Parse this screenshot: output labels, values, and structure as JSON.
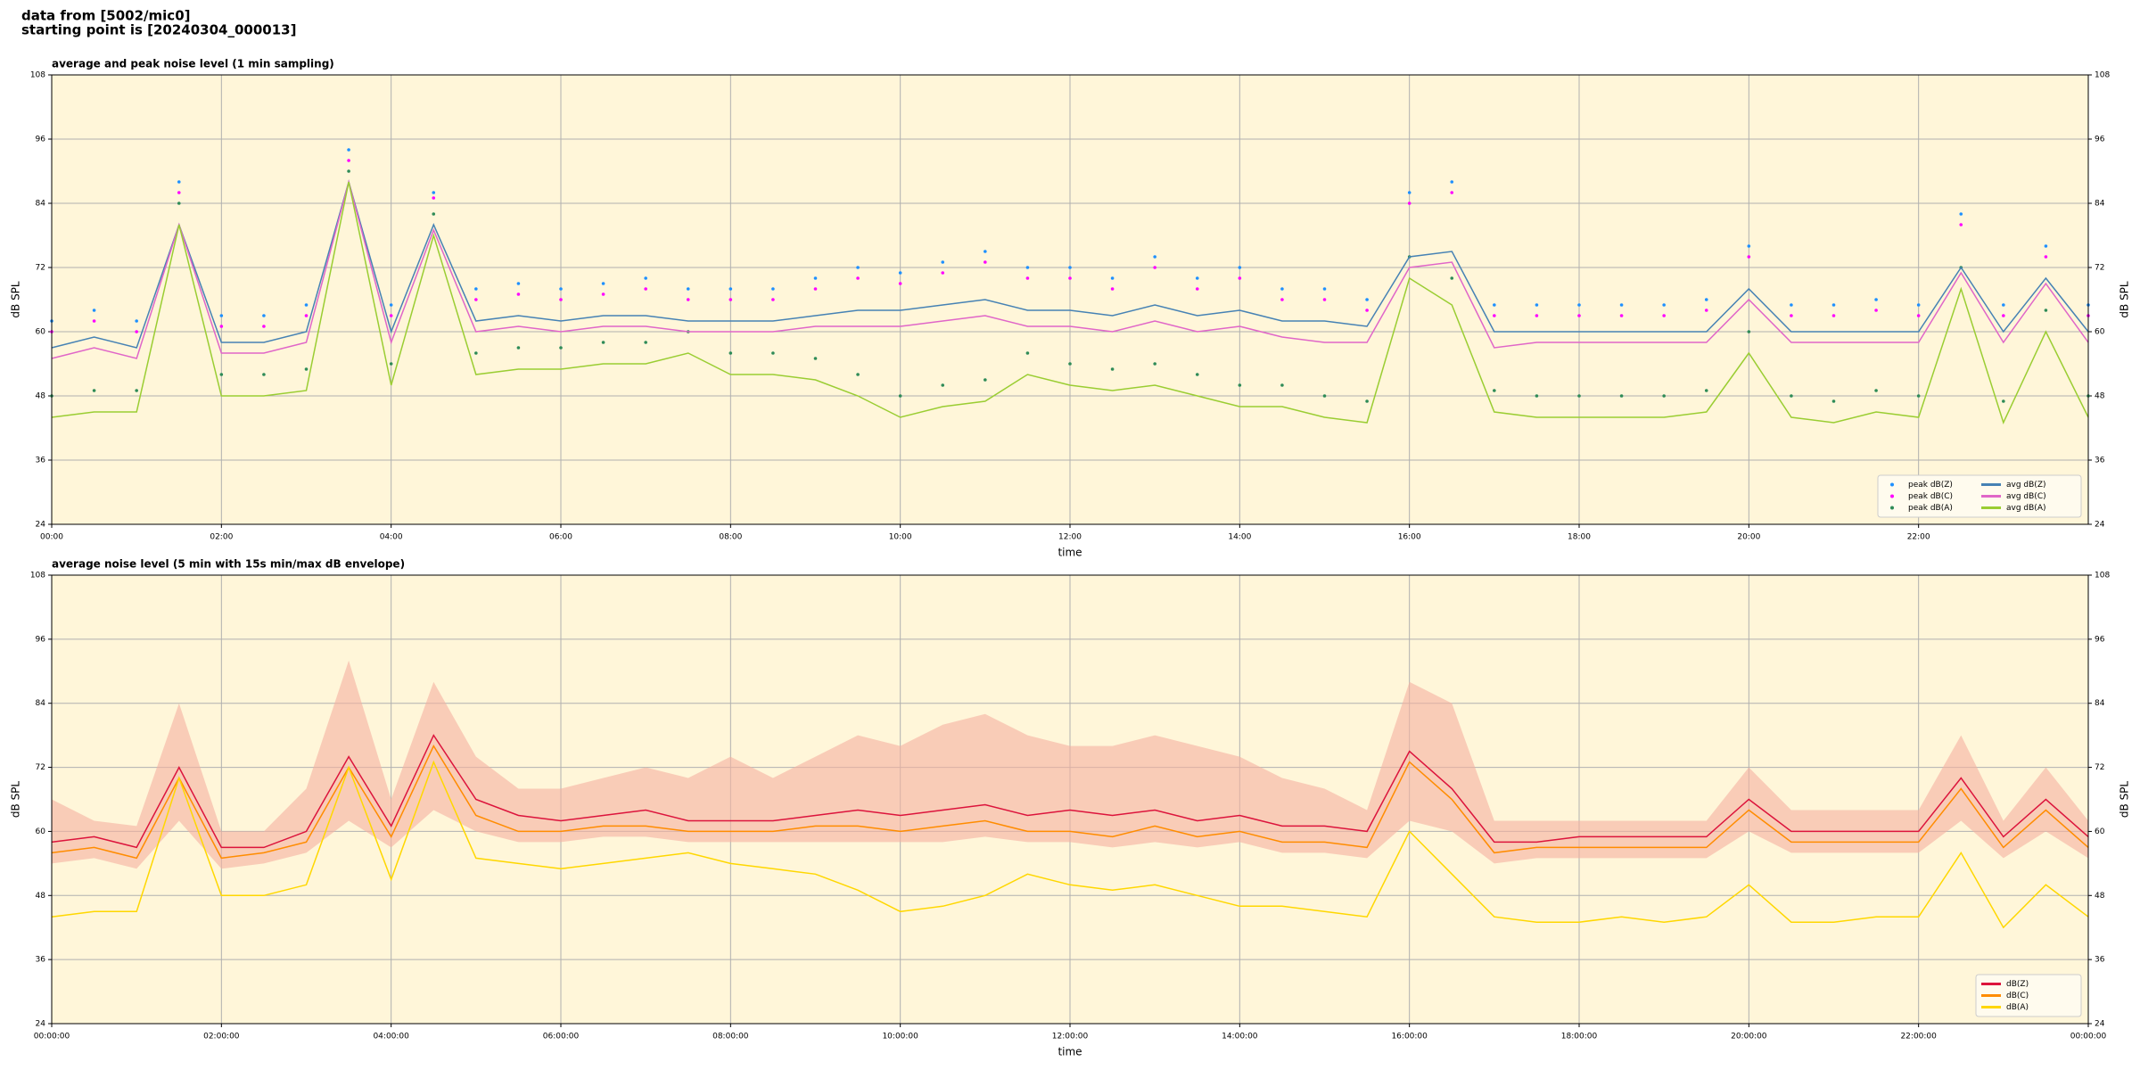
{
  "header": {
    "line1": "data from [5002/mic0]",
    "line2": "starting point is [20240304_000013]"
  },
  "chart_data": [
    {
      "type": "line",
      "title": "average and peak noise level (1 min sampling)",
      "xlabel": "time",
      "ylabel": "dB SPL",
      "xlim": [
        0,
        24
      ],
      "ylim": [
        24,
        108
      ],
      "yticks": [
        24,
        36,
        48,
        60,
        72,
        84,
        96,
        108
      ],
      "xticks": [
        {
          "value": 0,
          "label": "00:00"
        },
        {
          "value": 2,
          "label": "02:00"
        },
        {
          "value": 4,
          "label": "04:00"
        },
        {
          "value": 6,
          "label": "06:00"
        },
        {
          "value": 8,
          "label": "08:00"
        },
        {
          "value": 10,
          "label": "10:00"
        },
        {
          "value": 12,
          "label": "12:00"
        },
        {
          "value": 14,
          "label": "14:00"
        },
        {
          "value": 16,
          "label": "16:00"
        },
        {
          "value": 18,
          "label": "18:00"
        },
        {
          "value": 20,
          "label": "20:00"
        },
        {
          "value": 22,
          "label": "22:00"
        }
      ],
      "grid": true,
      "legend": "lower right",
      "x": [
        0,
        0.5,
        1,
        1.5,
        2,
        2.5,
        3,
        3.5,
        4,
        4.5,
        5,
        5.5,
        6,
        6.5,
        7,
        7.5,
        8,
        8.5,
        9,
        9.5,
        10,
        10.5,
        11,
        11.5,
        12,
        12.5,
        13,
        13.5,
        14,
        14.5,
        15,
        15.5,
        16,
        16.5,
        17,
        17.5,
        18,
        18.5,
        19,
        19.5,
        20,
        20.5,
        21,
        21.5,
        22,
        22.5,
        23,
        23.5,
        24
      ],
      "series": [
        {
          "name": "peak dB(Z)",
          "style": "scatter",
          "color": "#1e90ff",
          "values": [
            62,
            64,
            62,
            88,
            63,
            63,
            65,
            94,
            65,
            86,
            68,
            69,
            68,
            69,
            70,
            68,
            68,
            68,
            70,
            72,
            71,
            73,
            75,
            72,
            72,
            70,
            74,
            70,
            72,
            68,
            68,
            66,
            86,
            88,
            65,
            65,
            65,
            65,
            65,
            66,
            76,
            65,
            65,
            66,
            65,
            82,
            65,
            76,
            65
          ]
        },
        {
          "name": "peak dB(C)",
          "style": "scatter",
          "color": "#ff00ff",
          "values": [
            60,
            62,
            60,
            86,
            61,
            61,
            63,
            92,
            63,
            85,
            66,
            67,
            66,
            67,
            68,
            66,
            66,
            66,
            68,
            70,
            69,
            71,
            73,
            70,
            70,
            68,
            72,
            68,
            70,
            66,
            66,
            64,
            84,
            86,
            63,
            63,
            63,
            63,
            63,
            64,
            74,
            63,
            63,
            64,
            63,
            80,
            63,
            74,
            63
          ]
        },
        {
          "name": "peak dB(A)",
          "style": "scatter",
          "color": "#2e8b57",
          "values": [
            48,
            49,
            49,
            84,
            52,
            52,
            53,
            90,
            54,
            82,
            56,
            57,
            57,
            58,
            58,
            60,
            56,
            56,
            55,
            52,
            48,
            50,
            51,
            56,
            54,
            53,
            54,
            52,
            50,
            50,
            48,
            47,
            74,
            70,
            49,
            48,
            48,
            48,
            48,
            49,
            60,
            48,
            47,
            49,
            48,
            72,
            47,
            64,
            48
          ]
        },
        {
          "name": "avg dB(Z)",
          "style": "line",
          "color": "#4682b4",
          "values": [
            57,
            59,
            57,
            80,
            58,
            58,
            60,
            88,
            60,
            80,
            62,
            63,
            62,
            63,
            63,
            62,
            62,
            62,
            63,
            64,
            64,
            65,
            66,
            64,
            64,
            63,
            65,
            63,
            64,
            62,
            62,
            61,
            74,
            75,
            60,
            60,
            60,
            60,
            60,
            60,
            68,
            60,
            60,
            60,
            60,
            72,
            60,
            70,
            60
          ]
        },
        {
          "name": "avg dB(C)",
          "style": "line",
          "color": "#e066c8",
          "values": [
            55,
            57,
            55,
            80,
            56,
            56,
            58,
            88,
            58,
            79,
            60,
            61,
            60,
            61,
            61,
            60,
            60,
            60,
            61,
            61,
            61,
            62,
            63,
            61,
            61,
            60,
            62,
            60,
            61,
            59,
            58,
            58,
            72,
            73,
            57,
            58,
            58,
            58,
            58,
            58,
            66,
            58,
            58,
            58,
            58,
            71,
            58,
            69,
            58
          ]
        },
        {
          "name": "avg dB(A)",
          "style": "line",
          "color": "#9acd32",
          "values": [
            44,
            45,
            45,
            80,
            48,
            48,
            49,
            88,
            50,
            78,
            52,
            53,
            53,
            54,
            54,
            56,
            52,
            52,
            51,
            48,
            44,
            46,
            47,
            52,
            50,
            49,
            50,
            48,
            46,
            46,
            44,
            43,
            70,
            65,
            45,
            44,
            44,
            44,
            44,
            45,
            56,
            44,
            43,
            45,
            44,
            68,
            43,
            60,
            44
          ]
        }
      ]
    },
    {
      "type": "line",
      "title": "average noise level (5 min with 15s min/max dB envelope)",
      "xlabel": "time",
      "ylabel": "dB SPL",
      "xlim": [
        0,
        24
      ],
      "ylim": [
        24,
        108
      ],
      "yticks": [
        24,
        36,
        48,
        60,
        72,
        84,
        96,
        108
      ],
      "xticks": [
        {
          "value": 0,
          "label": "00:00:00"
        },
        {
          "value": 2,
          "label": "02:00:00"
        },
        {
          "value": 4,
          "label": "04:00:00"
        },
        {
          "value": 6,
          "label": "06:00:00"
        },
        {
          "value": 8,
          "label": "08:00:00"
        },
        {
          "value": 10,
          "label": "10:00:00"
        },
        {
          "value": 12,
          "label": "12:00:00"
        },
        {
          "value": 14,
          "label": "14:00:00"
        },
        {
          "value": 16,
          "label": "16:00:00"
        },
        {
          "value": 18,
          "label": "18:00:00"
        },
        {
          "value": 20,
          "label": "20:00:00"
        },
        {
          "value": 22,
          "label": "22:00:00"
        },
        {
          "value": 24,
          "label": "00:00:00"
        }
      ],
      "grid": true,
      "legend": "lower right",
      "x": [
        0,
        0.5,
        1,
        1.5,
        2,
        2.5,
        3,
        3.5,
        4,
        4.5,
        5,
        5.5,
        6,
        6.5,
        7,
        7.5,
        8,
        8.5,
        9,
        9.5,
        10,
        10.5,
        11,
        11.5,
        12,
        12.5,
        13,
        13.5,
        14,
        14.5,
        15,
        15.5,
        16,
        16.5,
        17,
        17.5,
        18,
        18.5,
        19,
        19.5,
        20,
        20.5,
        21,
        21.5,
        22,
        22.5,
        23,
        23.5,
        24
      ],
      "envelope": {
        "color": "#f5b0a0",
        "upper": [
          66,
          62,
          61,
          84,
          60,
          60,
          68,
          92,
          66,
          88,
          74,
          68,
          68,
          70,
          72,
          70,
          74,
          70,
          74,
          78,
          76,
          80,
          82,
          78,
          76,
          76,
          78,
          76,
          74,
          70,
          68,
          64,
          88,
          84,
          62,
          62,
          62,
          62,
          62,
          62,
          72,
          64,
          64,
          64,
          64,
          78,
          62,
          72,
          62
        ],
        "lower": [
          54,
          55,
          53,
          62,
          53,
          54,
          56,
          62,
          57,
          64,
          60,
          58,
          58,
          59,
          59,
          58,
          58,
          58,
          58,
          58,
          58,
          58,
          59,
          58,
          58,
          57,
          58,
          57,
          58,
          56,
          56,
          55,
          62,
          60,
          54,
          55,
          55,
          55,
          55,
          55,
          60,
          56,
          56,
          56,
          56,
          62,
          55,
          60,
          55
        ]
      },
      "series": [
        {
          "name": "dB(Z)",
          "style": "line",
          "color": "#dc143c",
          "values": [
            58,
            59,
            57,
            72,
            57,
            57,
            60,
            74,
            61,
            78,
            66,
            63,
            62,
            63,
            64,
            62,
            62,
            62,
            63,
            64,
            63,
            64,
            65,
            63,
            64,
            63,
            64,
            62,
            63,
            61,
            61,
            60,
            75,
            68,
            58,
            58,
            59,
            59,
            59,
            59,
            66,
            60,
            60,
            60,
            60,
            70,
            59,
            66,
            59
          ]
        },
        {
          "name": "dB(C)",
          "style": "line",
          "color": "#ff8c00",
          "values": [
            56,
            57,
            55,
            70,
            55,
            56,
            58,
            72,
            59,
            76,
            63,
            60,
            60,
            61,
            61,
            60,
            60,
            60,
            61,
            61,
            60,
            61,
            62,
            60,
            60,
            59,
            61,
            59,
            60,
            58,
            58,
            57,
            73,
            66,
            56,
            57,
            57,
            57,
            57,
            57,
            64,
            58,
            58,
            58,
            58,
            68,
            57,
            64,
            57
          ]
        },
        {
          "name": "dB(A)",
          "style": "line",
          "color": "#ffd700",
          "values": [
            44,
            45,
            45,
            70,
            48,
            48,
            50,
            72,
            51,
            73,
            55,
            54,
            53,
            54,
            55,
            56,
            54,
            53,
            52,
            49,
            45,
            46,
            48,
            52,
            50,
            49,
            50,
            48,
            46,
            46,
            45,
            44,
            60,
            52,
            44,
            43,
            43,
            44,
            43,
            44,
            50,
            43,
            43,
            44,
            44,
            56,
            42,
            50,
            44
          ]
        }
      ]
    }
  ]
}
